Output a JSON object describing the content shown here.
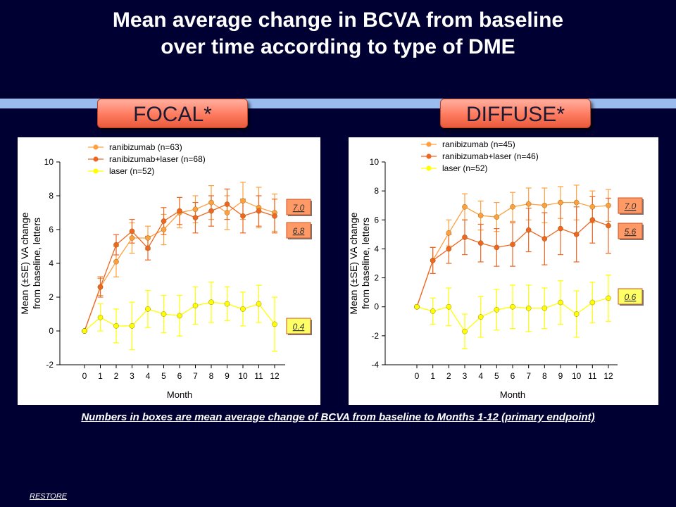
{
  "title_line1": "Mean average change in BCVA from baseline",
  "title_line2": "over time according to type of DME",
  "panels": {
    "focal": "FOCAL*",
    "diffuse": "DIFFUSE*"
  },
  "footnote": "Numbers in boxes are mean average change of BCVA from baseline to Months 1-12 (primary endpoint)",
  "source": "RESTORE",
  "colors": {
    "background": "#000033",
    "ranibizumab": "#ffa040",
    "ranibizumab_laser": "#ee6622",
    "laser": "#ffff00",
    "box_fill": "#ff9966"
  },
  "chart_data": [
    {
      "type": "line",
      "panel": "FOCAL*",
      "xlabel": "Month",
      "ylabel_line1": "Mean (±SE) VA change",
      "ylabel_line2": "from baseline, letters",
      "x": [
        0,
        1,
        2,
        3,
        4,
        5,
        6,
        7,
        8,
        9,
        10,
        11,
        12
      ],
      "ylim": [
        -2,
        10
      ],
      "yticks": [
        -2,
        0,
        2,
        4,
        6,
        8,
        10
      ],
      "series": [
        {
          "name": "ranibizumab (n=63)",
          "color": "#ffa040",
          "values": [
            0,
            2.6,
            4.1,
            5.5,
            5.5,
            6.0,
            7.0,
            7.2,
            7.6,
            7.0,
            7.7,
            7.3,
            7.0
          ],
          "se": [
            0,
            0.5,
            0.9,
            0.9,
            0.7,
            0.9,
            0.9,
            0.8,
            1.0,
            1.0,
            1.1,
            1.2,
            1.1
          ],
          "box": "7.0"
        },
        {
          "name": "ranibizumab+laser (n=68)",
          "color": "#ee6622",
          "values": [
            0,
            2.6,
            5.1,
            5.9,
            4.9,
            6.5,
            7.1,
            6.7,
            7.1,
            7.5,
            6.8,
            7.1,
            6.8
          ],
          "se": [
            0,
            0.6,
            0.6,
            0.7,
            0.7,
            0.8,
            0.8,
            0.9,
            0.9,
            0.9,
            1.0,
            0.9,
            1.0
          ],
          "box": "6.8"
        },
        {
          "name": "laser (n=52)",
          "color": "#ffff00",
          "values": [
            0,
            0.8,
            0.3,
            0.3,
            1.3,
            1.0,
            0.9,
            1.5,
            1.7,
            1.6,
            1.3,
            1.6,
            0.4
          ],
          "se": [
            0,
            0.8,
            1.0,
            1.4,
            1.1,
            1.1,
            1.2,
            1.1,
            1.2,
            1.0,
            1.0,
            1.1,
            1.6
          ],
          "box": "0.4"
        }
      ]
    },
    {
      "type": "line",
      "panel": "DIFFUSE*",
      "xlabel": "Month",
      "ylabel_line1": "Mean (±SE) VA change",
      "ylabel_line2": "from baseline, letters",
      "x": [
        0,
        1,
        2,
        3,
        4,
        5,
        6,
        7,
        8,
        9,
        10,
        11,
        12
      ],
      "ylim": [
        -4,
        10
      ],
      "yticks": [
        -4,
        -2,
        0,
        2,
        4,
        6,
        8,
        10
      ],
      "series": [
        {
          "name": "ranibizumab (n=45)",
          "color": "#ffa040",
          "values": [
            0,
            3.2,
            5.1,
            6.9,
            6.3,
            6.2,
            6.9,
            7.1,
            7.0,
            7.2,
            7.2,
            6.9,
            7.0
          ],
          "se": [
            0,
            0.9,
            0.9,
            0.9,
            1.0,
            1.0,
            1.0,
            1.1,
            1.2,
            1.1,
            1.2,
            1.1,
            1.1
          ],
          "box": "7.0"
        },
        {
          "name": "ranibizumab+laser (n=46)",
          "color": "#ee6622",
          "values": [
            0,
            3.2,
            4.0,
            4.8,
            4.4,
            4.1,
            4.3,
            5.3,
            4.7,
            5.4,
            5.0,
            6.0,
            5.6
          ],
          "se": [
            0,
            0.9,
            1.0,
            1.2,
            1.3,
            1.3,
            1.5,
            1.5,
            1.8,
            1.8,
            1.9,
            1.6,
            1.9
          ],
          "box": "5.6"
        },
        {
          "name": "laser (n=52)",
          "color": "#ffff00",
          "values": [
            0,
            -0.3,
            0.0,
            -1.7,
            -0.7,
            -0.2,
            0.0,
            -0.1,
            -0.1,
            0.3,
            -0.5,
            0.3,
            0.6
          ],
          "se": [
            0,
            0.9,
            1.3,
            1.2,
            1.4,
            1.4,
            1.5,
            1.6,
            1.4,
            1.5,
            1.6,
            1.4,
            1.6
          ],
          "box": "0.6"
        }
      ]
    }
  ]
}
